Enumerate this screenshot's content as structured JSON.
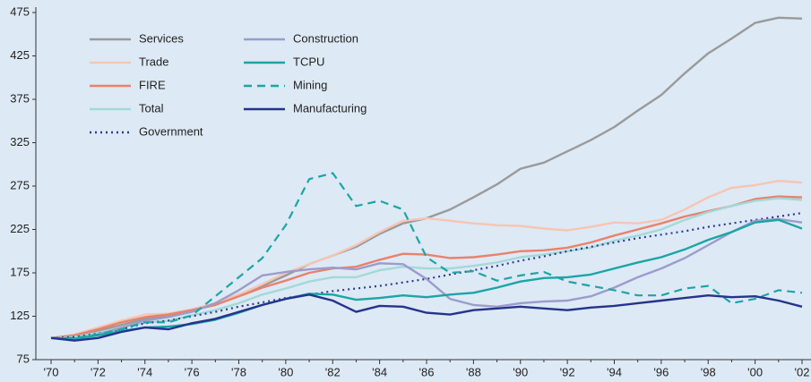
{
  "chart_data": {
    "type": "line",
    "categories": [
      "'70",
      null,
      "'72",
      null,
      "'74",
      null,
      "'76",
      null,
      "'78",
      null,
      "'80",
      null,
      "'82",
      null,
      "'84",
      null,
      "'86",
      null,
      "'88",
      null,
      "'90",
      null,
      "'92",
      null,
      "'94",
      null,
      "'96",
      null,
      "'98",
      null,
      "'00",
      null,
      "'02"
    ],
    "ylim": [
      75,
      475
    ],
    "yticks": [
      75,
      125,
      175,
      225,
      275,
      325,
      375,
      425,
      475
    ],
    "series": [
      {
        "name": "Services",
        "color": "#9a9a9a",
        "values": [
          100,
          102,
          108,
          115,
          122,
          125,
          132,
          140,
          150,
          160,
          172,
          185,
          195,
          205,
          220,
          232,
          238,
          248,
          262,
          277,
          295,
          302,
          315,
          328,
          343,
          362,
          380,
          405,
          428,
          445,
          463,
          469,
          468
        ]
      },
      {
        "name": "Trade",
        "color": "#f7c5b3",
        "values": [
          100,
          104,
          112,
          120,
          127,
          128,
          133,
          140,
          150,
          162,
          175,
          185,
          195,
          207,
          222,
          235,
          238,
          235,
          232,
          230,
          229,
          226,
          224,
          228,
          233,
          232,
          236,
          248,
          262,
          273,
          276,
          281,
          279
        ]
      },
      {
        "name": "FIRE",
        "color": "#e8826c",
        "values": [
          100,
          103,
          110,
          118,
          124,
          127,
          132,
          138,
          148,
          158,
          166,
          175,
          180,
          182,
          190,
          197,
          196,
          192,
          193,
          196,
          200,
          201,
          204,
          210,
          218,
          225,
          232,
          240,
          246,
          252,
          260,
          263,
          262
        ]
      },
      {
        "name": "Total",
        "color": "#a3d9d8",
        "values": [
          100,
          101,
          106,
          112,
          118,
          120,
          126,
          132,
          140,
          150,
          157,
          165,
          170,
          170,
          178,
          182,
          180,
          180,
          183,
          187,
          193,
          196,
          200,
          204,
          212,
          218,
          225,
          236,
          245,
          252,
          258,
          261,
          259
        ]
      },
      {
        "name": "Government",
        "color": "#2b3c8f",
        "dash": "dotted",
        "values": [
          100,
          101,
          105,
          110,
          117,
          120,
          125,
          130,
          136,
          141,
          146,
          150,
          154,
          157,
          160,
          164,
          168,
          173,
          178,
          183,
          189,
          194,
          200,
          205,
          210,
          215,
          219,
          223,
          228,
          232,
          236,
          240,
          244
        ]
      },
      {
        "name": "Construction",
        "color": "#9c9ccc",
        "values": [
          100,
          99,
          104,
          112,
          120,
          124,
          130,
          140,
          155,
          172,
          176,
          179,
          181,
          179,
          186,
          185,
          168,
          145,
          138,
          136,
          140,
          142,
          143,
          148,
          158,
          170,
          180,
          192,
          207,
          222,
          235,
          237,
          233
        ]
      },
      {
        "name": "TCPU",
        "color": "#1ba5a5",
        "values": [
          100,
          99,
          103,
          108,
          112,
          113,
          116,
          121,
          129,
          138,
          145,
          151,
          150,
          144,
          146,
          149,
          147,
          150,
          152,
          158,
          165,
          169,
          170,
          173,
          180,
          187,
          193,
          202,
          213,
          222,
          233,
          236,
          226
        ]
      },
      {
        "name": "Mining",
        "color": "#1ba5a5",
        "dash": "dashed",
        "values": [
          100,
          100,
          104,
          110,
          118,
          118,
          126,
          148,
          170,
          192,
          230,
          283,
          290,
          252,
          258,
          248,
          193,
          175,
          177,
          166,
          172,
          176,
          165,
          160,
          155,
          149,
          149,
          157,
          160,
          140,
          145,
          155,
          152
        ]
      },
      {
        "name": "Manufacturing",
        "color": "#26338a",
        "values": [
          100,
          97,
          100,
          107,
          112,
          110,
          117,
          122,
          130,
          138,
          145,
          150,
          143,
          130,
          137,
          136,
          129,
          127,
          132,
          134,
          136,
          134,
          132,
          135,
          137,
          140,
          143,
          146,
          149,
          147,
          148,
          143,
          136
        ]
      }
    ]
  }
}
